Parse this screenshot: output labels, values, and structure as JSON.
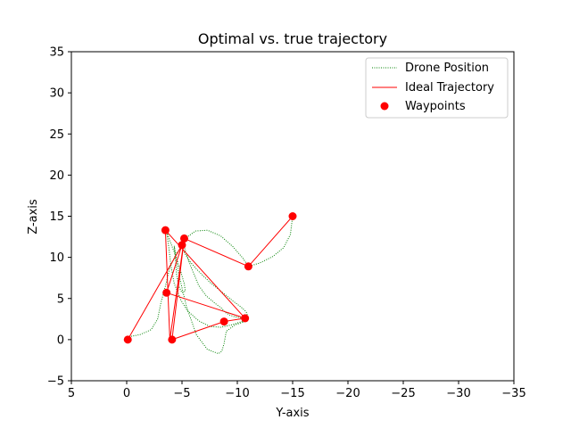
{
  "chart_data": {
    "type": "line",
    "title": "Optimal vs. true trajectory",
    "xlabel": "Y-axis",
    "ylabel": "Z-axis",
    "xlim": [
      5,
      -35
    ],
    "ylim": [
      -5,
      35
    ],
    "xticks": [
      5,
      0,
      -5,
      -10,
      -15,
      -20,
      -25,
      -30,
      -35
    ],
    "xtick_labels": [
      "5",
      "0",
      "−5",
      "−10",
      "−15",
      "−20",
      "−25",
      "−30",
      "−35"
    ],
    "yticks": [
      -5,
      0,
      5,
      10,
      15,
      20,
      25,
      30,
      35
    ],
    "ytick_labels": [
      "−5",
      "0",
      "5",
      "10",
      "15",
      "20",
      "25",
      "30",
      "35"
    ],
    "legend_position": "top-right",
    "colors": {
      "drone": "#008000",
      "ideal": "#ff0000",
      "waypoints": "#ff0000",
      "axes": "#000000"
    },
    "series": [
      {
        "name": "Drone Position",
        "style": "dotted",
        "x": [
          0,
          -1.2,
          -2.2,
          -2.8,
          -3.1,
          -3.5,
          -3.9,
          -4.5,
          -5.0,
          -5.2,
          -5.3,
          -5.6,
          -6.0,
          -6.5,
          -7.2,
          -8.0,
          -8.6,
          -8.9,
          -9.3,
          -9.7,
          -10.1,
          -10.7,
          -10.4,
          -9.5,
          -8.5,
          -7.5,
          -6.5,
          -5.5,
          -4.9,
          -4.3,
          -4.0,
          -3.8,
          -3.6,
          -3.9,
          -4.4,
          -4.9,
          -5.2,
          -5.3,
          -5.0,
          -4.7,
          -4.5,
          -4.4,
          -4.3,
          -4.7,
          -5.4,
          -6.3,
          -7.3,
          -8.3,
          -8.6,
          -8.8,
          -9.0,
          -9.8,
          -10.7,
          -11.0,
          -10.8,
          -10.3,
          -9.6,
          -8.6,
          -7.5,
          -6.5,
          -5.7,
          -5.2,
          -4.9,
          -5.3,
          -6.2,
          -7.3,
          -8.5,
          -9.6,
          -10.5,
          -11.0,
          -12.0,
          -13.2,
          -14.2,
          -14.8,
          -15.0
        ],
        "y": [
          0.3,
          0.6,
          1.2,
          2.5,
          4.5,
          6.5,
          8.8,
          10.5,
          11.2,
          11.4,
          10.8,
          9.6,
          8.2,
          6.6,
          5.3,
          4.4,
          3.8,
          3.3,
          3.0,
          2.8,
          2.7,
          2.6,
          2.2,
          1.8,
          1.5,
          1.6,
          2.3,
          3.5,
          4.8,
          6.8,
          9.0,
          11.3,
          13.3,
          12.0,
          10.3,
          8.2,
          6.8,
          5.9,
          5.7,
          6.5,
          8.0,
          9.8,
          11.4,
          8.0,
          4.0,
          0.6,
          -1.2,
          -1.7,
          -1.4,
          -0.5,
          1.0,
          1.8,
          2.2,
          2.6,
          3.4,
          4.0,
          4.7,
          5.8,
          7.0,
          8.3,
          9.5,
          10.6,
          11.4,
          12.3,
          13.2,
          13.3,
          12.6,
          11.3,
          9.9,
          8.9,
          9.3,
          10.1,
          11.2,
          12.8,
          15.0
        ]
      },
      {
        "name": "Ideal Trajectory",
        "style": "solid",
        "x": [
          -0.1,
          -5.0,
          -3.6,
          -10.7,
          -3.5,
          -3.9,
          -5.2,
          -11.0,
          -15.0,
          -11.0,
          -5.2,
          -4.1,
          -8.8,
          -10.7
        ],
        "y": [
          0.0,
          11.5,
          5.7,
          2.6,
          13.3,
          0.0,
          12.3,
          8.9,
          15.0,
          8.9,
          12.3,
          0.0,
          2.2,
          2.6
        ]
      }
    ],
    "waypoints": {
      "name": "Waypoints",
      "x": [
        -0.1,
        -3.5,
        -3.6,
        -5.0,
        -5.2,
        -4.1,
        -8.8,
        -10.7,
        -11.0,
        -15.0
      ],
      "y": [
        0.0,
        13.3,
        5.7,
        11.5,
        12.3,
        0.0,
        2.2,
        2.6,
        8.9,
        15.0
      ]
    }
  }
}
